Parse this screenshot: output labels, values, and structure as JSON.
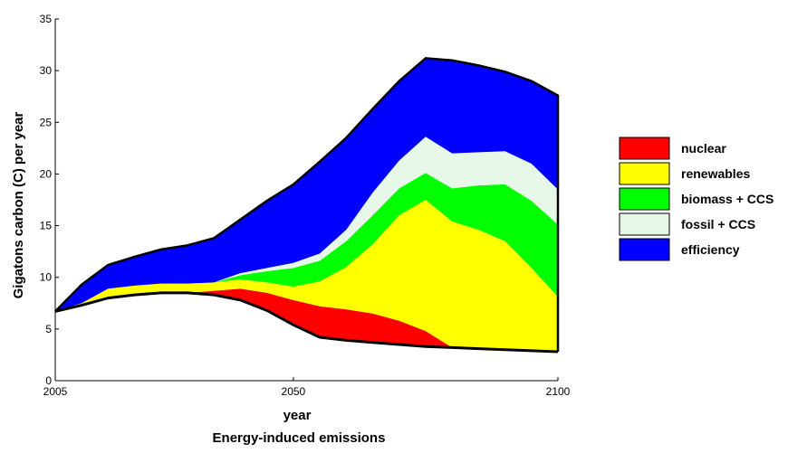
{
  "chart_data": {
    "type": "area",
    "caption": "Energy-induced emissions",
    "xlabel": "year",
    "ylabel": "Gigatons carbon (C) per year",
    "xlim": [
      2005,
      2100
    ],
    "ylim": [
      0,
      35
    ],
    "x_ticks": [
      2005,
      2050,
      2100
    ],
    "y_ticks": [
      0,
      5,
      10,
      15,
      20,
      25,
      30,
      35
    ],
    "grid": false,
    "legend_position": "right",
    "baseline": {
      "x": [
        2005,
        2010,
        2015,
        2020,
        2025,
        2030,
        2035,
        2040,
        2045,
        2050,
        2055,
        2060,
        2065,
        2070,
        2075,
        2080,
        2085,
        2090,
        2095,
        2100
      ],
      "y": [
        6.7,
        7.3,
        8.0,
        8.3,
        8.5,
        8.5,
        8.3,
        7.8,
        6.8,
        5.4,
        4.2,
        3.9,
        3.7,
        3.5,
        3.3,
        3.2,
        3.1,
        3.0,
        2.9,
        2.8
      ]
    },
    "series": [
      {
        "name": "nuclear",
        "color": "#ff0000",
        "x": [
          2005,
          2010,
          2015,
          2020,
          2025,
          2030,
          2035,
          2040,
          2045,
          2050,
          2055,
          2060,
          2065,
          2070,
          2075,
          2080,
          2085,
          2090,
          2095,
          2100
        ],
        "y": [
          6.7,
          7.3,
          8.0,
          8.3,
          8.5,
          8.5,
          8.7,
          8.9,
          8.5,
          7.8,
          7.2,
          6.9,
          6.5,
          5.8,
          4.8,
          3.2,
          3.1,
          3.0,
          2.9,
          2.8
        ]
      },
      {
        "name": "renewables",
        "color": "#ffff00",
        "x": [
          2005,
          2010,
          2015,
          2020,
          2025,
          2030,
          2035,
          2040,
          2045,
          2050,
          2055,
          2060,
          2065,
          2070,
          2075,
          2080,
          2085,
          2090,
          2095,
          2100
        ],
        "y": [
          6.7,
          7.5,
          8.9,
          9.2,
          9.4,
          9.4,
          9.5,
          9.8,
          9.5,
          9.1,
          9.6,
          11.0,
          13.2,
          16.0,
          17.5,
          15.4,
          14.6,
          13.5,
          10.9,
          8.1
        ]
      },
      {
        "name": "biomass + CCS",
        "color": "#00ff00",
        "x": [
          2005,
          2010,
          2015,
          2020,
          2025,
          2030,
          2035,
          2040,
          2045,
          2050,
          2055,
          2060,
          2065,
          2070,
          2075,
          2080,
          2085,
          2090,
          2095,
          2100
        ],
        "y": [
          6.7,
          7.5,
          8.9,
          9.2,
          9.4,
          9.4,
          9.5,
          10.2,
          10.6,
          10.9,
          11.6,
          13.5,
          16.0,
          18.6,
          20.1,
          18.6,
          18.9,
          19.0,
          17.4,
          15.1
        ]
      },
      {
        "name": "fossil + CCS",
        "color": "#e8f8e8",
        "x": [
          2005,
          2010,
          2015,
          2020,
          2025,
          2030,
          2035,
          2040,
          2045,
          2050,
          2055,
          2060,
          2065,
          2070,
          2075,
          2080,
          2085,
          2090,
          2095,
          2100
        ],
        "y": [
          6.7,
          7.5,
          8.9,
          9.2,
          9.4,
          9.4,
          9.5,
          10.4,
          10.9,
          11.4,
          12.3,
          14.6,
          18.2,
          21.3,
          23.6,
          22.0,
          22.1,
          22.2,
          21.0,
          18.5
        ]
      },
      {
        "name": "efficiency",
        "color": "#0000ff",
        "x": [
          2005,
          2010,
          2015,
          2020,
          2025,
          2030,
          2035,
          2040,
          2045,
          2050,
          2055,
          2060,
          2065,
          2070,
          2075,
          2080,
          2085,
          2090,
          2095,
          2100
        ],
        "y": [
          6.7,
          9.3,
          11.2,
          12.0,
          12.7,
          13.1,
          13.8,
          15.6,
          17.4,
          19.0,
          21.2,
          23.5,
          26.3,
          29.0,
          31.2,
          31.0,
          30.5,
          29.9,
          29.0,
          27.6
        ]
      }
    ]
  }
}
